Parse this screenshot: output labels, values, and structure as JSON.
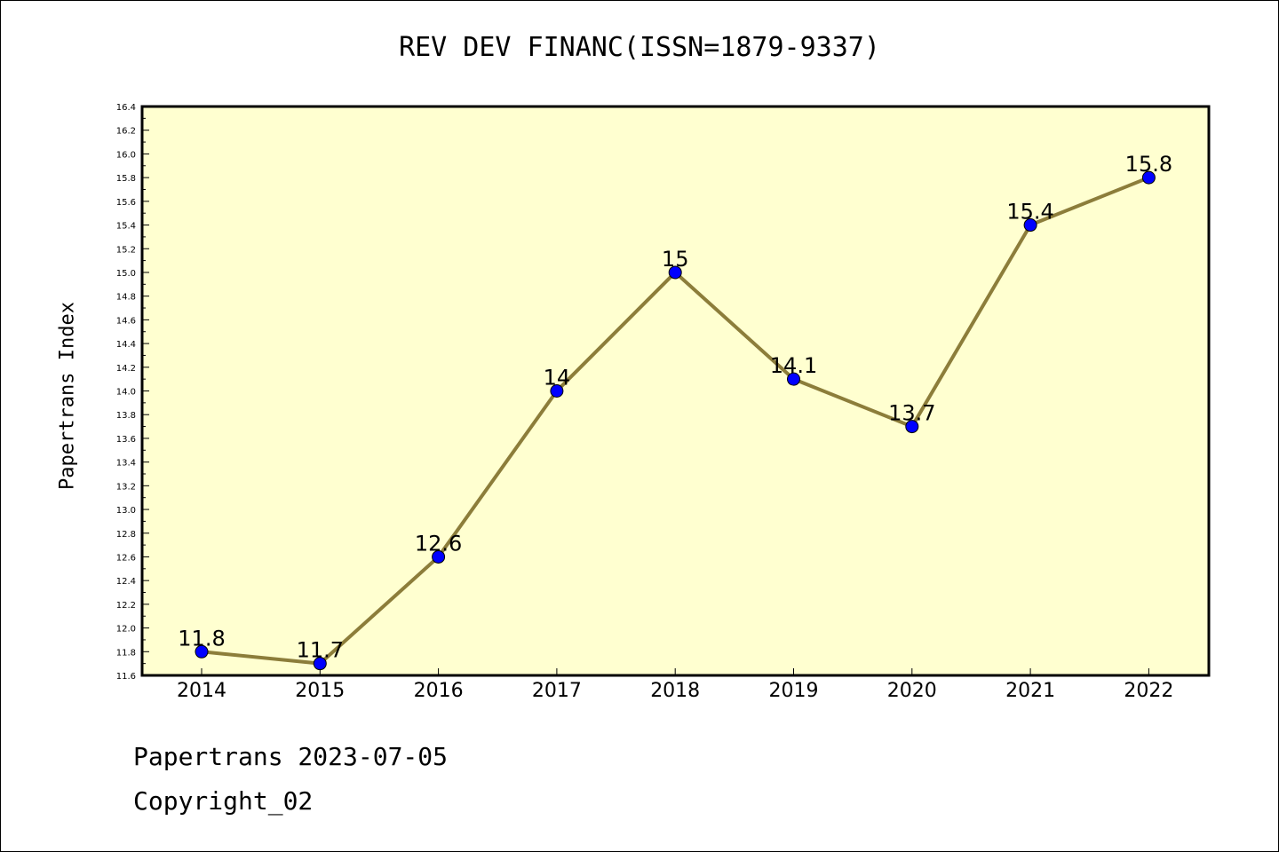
{
  "chart_data": {
    "type": "line",
    "title": "REV DEV FINANC(ISSN=1879-9337)",
    "xlabel": "",
    "ylabel": "Papertrans Index",
    "categories": [
      "2014",
      "2015",
      "2016",
      "2017",
      "2018",
      "2019",
      "2020",
      "2021",
      "2022"
    ],
    "series": [
      {
        "values": [
          11.8,
          11.7,
          12.6,
          14.0,
          15.0,
          14.1,
          13.7,
          15.4,
          15.8
        ],
        "point_labels": [
          "11.8",
          "11.7",
          "12.6",
          "14",
          "15",
          "14.1",
          "13.7",
          "15.4",
          "15.8"
        ],
        "line_color": "#8c7d3a",
        "marker_color": "#0000ff"
      }
    ],
    "ylim": [
      11.6,
      16.4
    ],
    "yticks": [
      "11.6",
      "11.8",
      "12.0",
      "12.2",
      "12.4",
      "12.6",
      "12.8",
      "13.0",
      "13.2",
      "13.4",
      "13.6",
      "13.8",
      "14.0",
      "14.2",
      "14.4",
      "14.6",
      "14.8",
      "15.0",
      "15.2",
      "15.4",
      "15.6",
      "15.8",
      "16.0",
      "16.2",
      "16.4"
    ],
    "plot_background": "#ffffd0",
    "grid": false,
    "legend": "none"
  },
  "footer": {
    "line1": "Papertrans 2023-07-05",
    "line2": "Copyright_02"
  }
}
